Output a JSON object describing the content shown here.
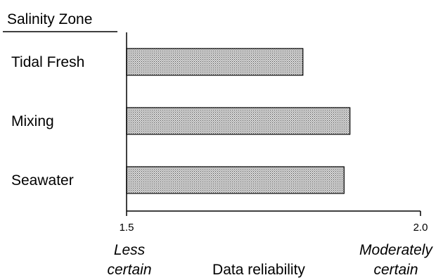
{
  "chart_data": {
    "type": "bar",
    "orientation": "horizontal",
    "header": "Salinity Zone",
    "categories": [
      "Tidal Fresh",
      "Mixing",
      "Seawater"
    ],
    "values": [
      1.8,
      1.88,
      1.87
    ],
    "xlabel": "Data reliability",
    "xlim": [
      1.5,
      2.0
    ],
    "x_ticks": [
      {
        "value": 1.5,
        "label": "1.5"
      },
      {
        "value": 2.0,
        "label": "2.0"
      }
    ],
    "annotations": {
      "left_line1": "Less",
      "left_line2": "certain",
      "right_line1": "Moderately",
      "right_line2": "certain"
    },
    "bar_fill": "hatched gray",
    "grid": false,
    "legend": "none"
  }
}
